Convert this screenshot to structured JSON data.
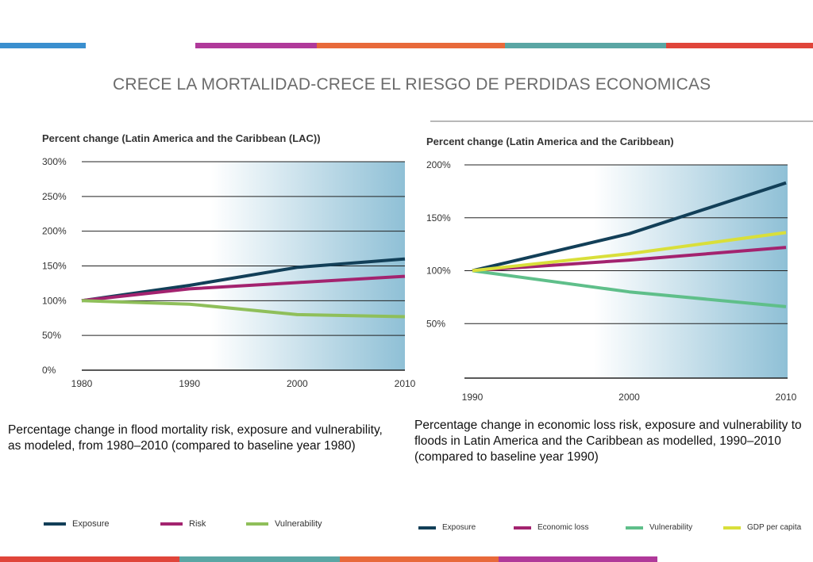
{
  "slide": {
    "title": "CRECE LA MORTALIDAD-CRECE EL RIESGO DE PERDIDAS ECONOMICAS",
    "colors": {
      "blue": "#3a8fcf",
      "magenta": "#b0399a",
      "orange": "#e8693a",
      "teal": "#5aa6a4",
      "red": "#e0453a"
    }
  },
  "captions": {
    "left": "Percentage change in flood mortality risk, exposure and vulnerability, as modeled, from 1980–2010 (compared to baseline year 1980)",
    "right": "Percentage change in economic loss risk, exposure and vulnerability to floods in Latin America and the Caribbean as modelled, 1990–2010 (compared to baseline year 1990)"
  },
  "chart_data": [
    {
      "type": "line",
      "title": "Percent change (Latin America and the Caribbean (LAC))",
      "x": [
        1980,
        1990,
        2000,
        2010
      ],
      "x_ticks": [
        "1980",
        "1990",
        "2000",
        "2010"
      ],
      "y_ticks": [
        "0%",
        "50%",
        "100%",
        "150%",
        "200%",
        "250%",
        "300%"
      ],
      "ylim": [
        0,
        300
      ],
      "xlim": [
        1980,
        2010
      ],
      "grid": true,
      "legend_position": "bottom",
      "series": [
        {
          "name": "Exposure",
          "color": "#123f58",
          "values": [
            100,
            122,
            148,
            160
          ]
        },
        {
          "name": "Risk",
          "color": "#a3236f",
          "values": [
            100,
            117,
            126,
            135
          ]
        },
        {
          "name": "Vulnerability",
          "color": "#8fbf5a",
          "values": [
            100,
            95,
            80,
            77
          ]
        }
      ]
    },
    {
      "type": "line",
      "title": "Percent change (Latin America and the Caribbean)",
      "x": [
        1990,
        2000,
        2010
      ],
      "x_ticks": [
        "1990",
        "2000",
        "2010"
      ],
      "y_ticks": [
        "50%",
        "100%",
        "150%",
        "200%"
      ],
      "ylim": [
        0,
        200
      ],
      "xlim": [
        1990,
        2010
      ],
      "grid": true,
      "legend_position": "bottom",
      "series": [
        {
          "name": "Exposure",
          "color": "#123f58",
          "values": [
            100,
            135,
            183
          ]
        },
        {
          "name": "Economic loss",
          "color": "#a3236f",
          "values": [
            100,
            110,
            122
          ]
        },
        {
          "name": "Vulnerability",
          "color": "#5fbf8a",
          "values": [
            100,
            80,
            66
          ]
        },
        {
          "name": "GDP per capita",
          "color": "#d9df3a",
          "values": [
            100,
            116,
            136
          ]
        }
      ]
    }
  ]
}
